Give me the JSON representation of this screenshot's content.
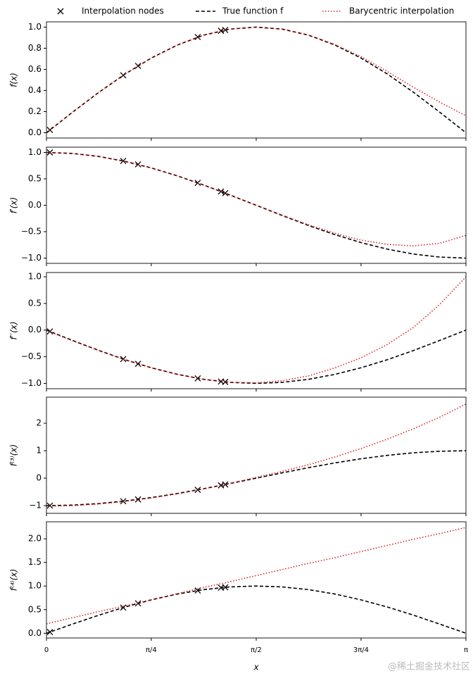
{
  "chart_data": [
    {
      "type": "line",
      "ylabel": "f(x)",
      "legend": "top",
      "x": [
        0,
        0.196,
        0.393,
        0.589,
        0.785,
        0.982,
        1.178,
        1.374,
        1.571,
        1.767,
        1.963,
        2.16,
        2.356,
        2.553,
        2.749,
        2.945,
        3.142
      ],
      "series": [
        {
          "name": "Interpolation nodes",
          "color": "#000000",
          "style": "marker",
          "x": [
            0.026,
            0.575,
            0.686,
            1.133,
            1.307,
            1.339
          ],
          "values": [
            0.026,
            0.544,
            0.633,
            0.906,
            0.965,
            0.973
          ]
        },
        {
          "name": "True function f",
          "color": "#000000",
          "style": "dashed",
          "values": [
            0,
            0.195,
            0.383,
            0.556,
            0.707,
            0.831,
            0.924,
            0.981,
            1,
            0.981,
            0.924,
            0.831,
            0.707,
            0.556,
            0.383,
            0.195,
            0
          ]
        },
        {
          "name": "Barycentric interpolation",
          "color": "#d62728",
          "style": "dotted",
          "values": [
            0,
            0.195,
            0.383,
            0.556,
            0.707,
            0.831,
            0.924,
            0.981,
            1,
            0.981,
            0.925,
            0.835,
            0.72,
            0.58,
            0.43,
            0.29,
            0.16
          ]
        }
      ],
      "ylim": [
        -0.05,
        1.05
      ],
      "yticks": [
        {
          "value": 0,
          "label": "0.0"
        },
        0.2,
        0.4,
        0.6,
        0.8,
        {
          "value": 1,
          "label": "1.0"
        }
      ]
    },
    {
      "type": "line",
      "ylabel": "f′(x)",
      "x": [
        0,
        0.196,
        0.393,
        0.589,
        0.785,
        0.982,
        1.178,
        1.374,
        1.571,
        1.767,
        1.963,
        2.16,
        2.356,
        2.553,
        2.749,
        2.945,
        3.142
      ],
      "series": [
        {
          "color": "#000000",
          "style": "marker",
          "x": [
            0.026,
            0.575,
            0.686,
            1.133,
            1.307,
            1.339
          ],
          "values": [
            1.0,
            0.839,
            0.774,
            0.424,
            0.261,
            0.229
          ]
        },
        {
          "color": "#000000",
          "style": "dashed",
          "values": [
            1,
            0.981,
            0.924,
            0.831,
            0.707,
            0.556,
            0.383,
            0.195,
            0,
            -0.195,
            -0.383,
            -0.556,
            -0.707,
            -0.831,
            -0.924,
            -0.981,
            -1
          ]
        },
        {
          "color": "#d62728",
          "style": "dotted",
          "values": [
            1,
            0.981,
            0.924,
            0.831,
            0.707,
            0.556,
            0.383,
            0.195,
            0,
            -0.19,
            -0.37,
            -0.53,
            -0.66,
            -0.74,
            -0.77,
            -0.72,
            -0.57
          ]
        }
      ],
      "ylim": [
        -1.1,
        1.1
      ],
      "yticks": [
        {
          "value": -1,
          "label": "−1.0"
        },
        {
          "value": -0.5,
          "label": "−0.5"
        },
        {
          "value": 0,
          "label": "0.0"
        },
        0.5,
        {
          "value": 1,
          "label": "1.0"
        }
      ]
    },
    {
      "type": "line",
      "ylabel": "f′′(x)",
      "x": [
        0,
        0.196,
        0.393,
        0.589,
        0.785,
        0.982,
        1.178,
        1.374,
        1.571,
        1.767,
        1.963,
        2.16,
        2.356,
        2.553,
        2.749,
        2.945,
        3.142
      ],
      "series": [
        {
          "color": "#000000",
          "style": "marker",
          "x": [
            0.026,
            0.575,
            0.686,
            1.133,
            1.307,
            1.339
          ],
          "values": [
            -0.026,
            -0.544,
            -0.633,
            -0.906,
            -0.965,
            -0.973
          ]
        },
        {
          "color": "#000000",
          "style": "dashed",
          "values": [
            0,
            -0.195,
            -0.383,
            -0.556,
            -0.707,
            -0.831,
            -0.924,
            -0.981,
            -1,
            -0.981,
            -0.924,
            -0.831,
            -0.707,
            -0.556,
            -0.383,
            -0.195,
            0
          ]
        },
        {
          "color": "#d62728",
          "style": "dotted",
          "values": [
            -0.01,
            -0.2,
            -0.385,
            -0.556,
            -0.707,
            -0.831,
            -0.924,
            -0.98,
            -0.99,
            -0.95,
            -0.86,
            -0.71,
            -0.52,
            -0.27,
            0.05,
            0.48,
            1.0
          ]
        }
      ],
      "ylim": [
        -1.1,
        1.08
      ],
      "yticks": [
        {
          "value": -1,
          "label": "−1.0"
        },
        {
          "value": -0.5,
          "label": "−0.5"
        },
        {
          "value": 0,
          "label": "0.0"
        },
        0.5,
        {
          "value": 1,
          "label": "1.0"
        }
      ]
    },
    {
      "type": "line",
      "ylabel": "f⁽³⁾(x)",
      "x": [
        0,
        0.196,
        0.393,
        0.589,
        0.785,
        0.982,
        1.178,
        1.374,
        1.571,
        1.767,
        1.963,
        2.16,
        2.356,
        2.553,
        2.749,
        2.945,
        3.142
      ],
      "series": [
        {
          "color": "#000000",
          "style": "marker",
          "x": [
            0.026,
            0.575,
            0.686,
            1.133,
            1.307,
            1.339
          ],
          "values": [
            -1.0,
            -0.839,
            -0.774,
            -0.424,
            -0.261,
            -0.229
          ]
        },
        {
          "color": "#000000",
          "style": "dashed",
          "values": [
            -1,
            -0.981,
            -0.924,
            -0.831,
            -0.707,
            -0.556,
            -0.383,
            -0.195,
            0,
            0.195,
            0.383,
            0.556,
            0.707,
            0.831,
            0.924,
            0.981,
            1
          ]
        },
        {
          "color": "#d62728",
          "style": "dotted",
          "values": [
            -1.02,
            -1.0,
            -0.94,
            -0.85,
            -0.72,
            -0.57,
            -0.39,
            -0.19,
            0.03,
            0.25,
            0.49,
            0.77,
            1.08,
            1.42,
            1.8,
            2.22,
            2.7
          ]
        }
      ],
      "ylim": [
        -1.28,
        2.95
      ],
      "yticks": [
        {
          "value": -1,
          "label": "−1"
        },
        0,
        1,
        2
      ]
    },
    {
      "type": "line",
      "ylabel": "f⁽⁴⁾(x)",
      "xlabel": "x",
      "x": [
        0,
        0.196,
        0.393,
        0.589,
        0.785,
        0.982,
        1.178,
        1.374,
        1.571,
        1.767,
        1.963,
        2.16,
        2.356,
        2.553,
        2.749,
        2.945,
        3.142
      ],
      "series": [
        {
          "color": "#000000",
          "style": "marker",
          "x": [
            0.026,
            0.575,
            0.686,
            1.133,
            1.307,
            1.339
          ],
          "values": [
            0.026,
            0.544,
            0.633,
            0.906,
            0.965,
            0.973
          ]
        },
        {
          "color": "#000000",
          "style": "dashed",
          "values": [
            0,
            0.195,
            0.383,
            0.556,
            0.707,
            0.831,
            0.924,
            0.981,
            1,
            0.981,
            0.924,
            0.831,
            0.707,
            0.556,
            0.383,
            0.195,
            0
          ]
        },
        {
          "color": "#d62728",
          "style": "dotted",
          "values": [
            0.2,
            0.33,
            0.46,
            0.58,
            0.71,
            0.84,
            0.97,
            1.09,
            1.22,
            1.35,
            1.48,
            1.6,
            1.73,
            1.86,
            1.99,
            2.11,
            2.24
          ]
        }
      ],
      "ylim": [
        -0.1,
        2.36
      ],
      "yticks": [
        {
          "value": 0,
          "label": "0.0"
        },
        0.5,
        {
          "value": 1,
          "label": "1.0"
        },
        1.5,
        {
          "value": 2,
          "label": "2.0"
        }
      ],
      "xlim": [
        0,
        3.142
      ],
      "xticks": [
        0,
        {
          "value": 0.785,
          "label": "π/4"
        },
        {
          "value": 1.571,
          "label": "π/2"
        },
        {
          "value": 2.356,
          "label": "3π/4"
        },
        {
          "value": 3.142,
          "label": "π"
        }
      ]
    }
  ],
  "watermark": "@稀土掘金技术社区"
}
